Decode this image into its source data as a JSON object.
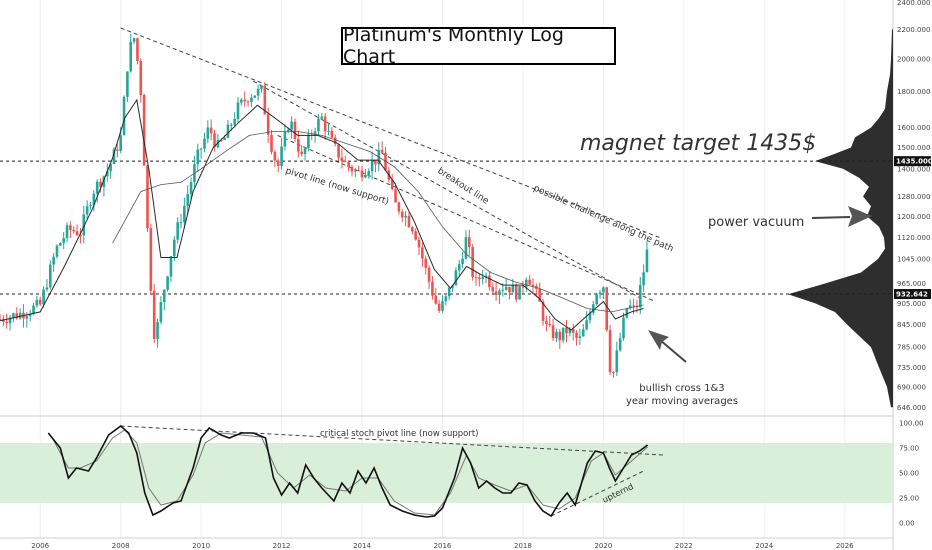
{
  "chart_data": [
    {
      "type": "candlestick",
      "title": "Platinum's Monthly Log Chart",
      "scale": "log",
      "ylim": [
        630,
        2420
      ],
      "xlim": [
        2005.0,
        2027.2
      ],
      "x_ticks": [
        "2006",
        "2008",
        "2010",
        "2012",
        "2014",
        "2016",
        "2018",
        "2020",
        "2022",
        "2024",
        "2026"
      ],
      "y_ticks": [
        "2400.000",
        "2200.000",
        "2000.000",
        "1800.000",
        "1600.000",
        "1500.000",
        "1435.000",
        "1400.000",
        "1280.000",
        "1200.000",
        "1120.000",
        "1045.000",
        "965.000",
        "932.642",
        "905.000",
        "845.000",
        "785.000",
        "735.000",
        "690.000",
        "646.000"
      ],
      "price_labels": [
        {
          "value": 1435,
          "text": "1435.000"
        },
        {
          "value": 932.642,
          "text": "932.642"
        }
      ],
      "close_path": [
        [
          2005.0,
          860
        ],
        [
          2005.5,
          875
        ],
        [
          2006.0,
          900
        ],
        [
          2006.4,
          1080
        ],
        [
          2006.7,
          1150
        ],
        [
          2007.0,
          1140
        ],
        [
          2007.3,
          1300
        ],
        [
          2007.7,
          1400
        ],
        [
          2008.0,
          1550
        ],
        [
          2008.2,
          2050
        ],
        [
          2008.35,
          2150
        ],
        [
          2008.5,
          1800
        ],
        [
          2008.7,
          1050
        ],
        [
          2008.85,
          800
        ],
        [
          2009.0,
          900
        ],
        [
          2009.3,
          1100
        ],
        [
          2009.6,
          1250
        ],
        [
          2009.9,
          1450
        ],
        [
          2010.2,
          1600
        ],
        [
          2010.4,
          1500
        ],
        [
          2010.6,
          1550
        ],
        [
          2010.9,
          1700
        ],
        [
          2011.2,
          1780
        ],
        [
          2011.5,
          1800
        ],
        [
          2011.7,
          1550
        ],
        [
          2011.9,
          1400
        ],
        [
          2012.2,
          1650
        ],
        [
          2012.5,
          1450
        ],
        [
          2012.8,
          1600
        ],
        [
          2013.0,
          1650
        ],
        [
          2013.3,
          1500
        ],
        [
          2013.6,
          1420
        ],
        [
          2013.9,
          1380
        ],
        [
          2014.2,
          1420
        ],
        [
          2014.5,
          1470
        ],
        [
          2014.8,
          1250
        ],
        [
          2015.0,
          1220
        ],
        [
          2015.3,
          1150
        ],
        [
          2015.6,
          1000
        ],
        [
          2015.9,
          880
        ],
        [
          2016.1,
          920
        ],
        [
          2016.4,
          1020
        ],
        [
          2016.6,
          1120
        ],
        [
          2016.8,
          960
        ],
        [
          2017.0,
          1000
        ],
        [
          2017.3,
          950
        ],
        [
          2017.6,
          960
        ],
        [
          2017.9,
          930
        ],
        [
          2018.1,
          1000
        ],
        [
          2018.4,
          910
        ],
        [
          2018.6,
          830
        ],
        [
          2018.9,
          810
        ],
        [
          2019.1,
          830
        ],
        [
          2019.4,
          800
        ],
        [
          2019.6,
          850
        ],
        [
          2019.8,
          940
        ],
        [
          2020.0,
          960
        ],
        [
          2020.2,
          700
        ],
        [
          2020.4,
          800
        ],
        [
          2020.6,
          900
        ],
        [
          2020.8,
          880
        ],
        [
          2020.95,
          970
        ],
        [
          2021.1,
          1080
        ]
      ],
      "ma_fast": [
        [
          2005.0,
          855
        ],
        [
          2006.0,
          880
        ],
        [
          2006.6,
          1020
        ],
        [
          2007.3,
          1230
        ],
        [
          2007.8,
          1450
        ],
        [
          2008.1,
          1650
        ],
        [
          2008.4,
          1750
        ],
        [
          2008.7,
          1400
        ],
        [
          2009.0,
          1050
        ],
        [
          2009.4,
          1050
        ],
        [
          2009.8,
          1300
        ],
        [
          2010.3,
          1500
        ],
        [
          2010.9,
          1620
        ],
        [
          2011.4,
          1720
        ],
        [
          2011.9,
          1640
        ],
        [
          2012.4,
          1560
        ],
        [
          2012.9,
          1560
        ],
        [
          2013.4,
          1520
        ],
        [
          2013.9,
          1440
        ],
        [
          2014.4,
          1440
        ],
        [
          2014.8,
          1340
        ],
        [
          2015.3,
          1180
        ],
        [
          2015.8,
          1010
        ],
        [
          2016.2,
          950
        ],
        [
          2016.6,
          1020
        ],
        [
          2017.0,
          990
        ],
        [
          2017.5,
          960
        ],
        [
          2018.0,
          960
        ],
        [
          2018.4,
          920
        ],
        [
          2018.8,
          860
        ],
        [
          2019.2,
          830
        ],
        [
          2019.6,
          870
        ],
        [
          2020.0,
          910
        ],
        [
          2020.3,
          860
        ],
        [
          2020.7,
          880
        ],
        [
          2021.0,
          890
        ]
      ],
      "ma_slow": [
        [
          2007.8,
          1100
        ],
        [
          2008.5,
          1300
        ],
        [
          2009.0,
          1330
        ],
        [
          2009.5,
          1340
        ],
        [
          2010.0,
          1400
        ],
        [
          2010.6,
          1480
        ],
        [
          2011.2,
          1560
        ],
        [
          2011.8,
          1580
        ],
        [
          2012.4,
          1580
        ],
        [
          2013.0,
          1560
        ],
        [
          2013.6,
          1520
        ],
        [
          2014.2,
          1480
        ],
        [
          2014.8,
          1410
        ],
        [
          2015.4,
          1300
        ],
        [
          2016.0,
          1160
        ],
        [
          2016.6,
          1060
        ],
        [
          2017.2,
          1000
        ],
        [
          2017.8,
          970
        ],
        [
          2018.4,
          950
        ],
        [
          2019.0,
          920
        ],
        [
          2019.6,
          890
        ],
        [
          2020.2,
          880
        ],
        [
          2021.0,
          900
        ]
      ],
      "trendlines": [
        {
          "name": "possible challenge along the path",
          "from": [
            2008.0,
            2210
          ],
          "to": [
            2021.4,
            1120
          ]
        },
        {
          "name": "breakout line",
          "from": [
            2011.3,
            1860
          ],
          "to": [
            2021.0,
            915
          ]
        },
        {
          "name": "pivot line (now support)",
          "from": [
            2011.9,
            1560
          ],
          "to": [
            2021.3,
            910
          ]
        }
      ],
      "hlines": [
        1435,
        932.642
      ],
      "volume_profile": [
        [
          646,
          2
        ],
        [
          690,
          6
        ],
        [
          735,
          14
        ],
        [
          785,
          22
        ],
        [
          845,
          46
        ],
        [
          880,
          58
        ],
        [
          905,
          78
        ],
        [
          932,
          105
        ],
        [
          965,
          68
        ],
        [
          1000,
          32
        ],
        [
          1045,
          15
        ],
        [
          1080,
          8
        ],
        [
          1120,
          9
        ],
        [
          1160,
          14
        ],
        [
          1200,
          26
        ],
        [
          1240,
          22
        ],
        [
          1280,
          30
        ],
        [
          1320,
          24
        ],
        [
          1360,
          34
        ],
        [
          1400,
          50
        ],
        [
          1435,
          78
        ],
        [
          1470,
          58
        ],
        [
          1500,
          42
        ],
        [
          1550,
          38
        ],
        [
          1600,
          22
        ],
        [
          1650,
          14
        ],
        [
          1700,
          8
        ],
        [
          1800,
          6
        ],
        [
          1900,
          3
        ],
        [
          2000,
          2
        ],
        [
          2200,
          1
        ]
      ]
    },
    {
      "type": "line",
      "title": "",
      "ylim": [
        -15,
        105
      ],
      "y_ticks": [
        "100.00",
        "75.00",
        "50.00",
        "25.00",
        "0.00"
      ],
      "band": [
        20,
        80
      ],
      "k_line": [
        [
          2006.2,
          90
        ],
        [
          2006.5,
          75
        ],
        [
          2006.7,
          45
        ],
        [
          2006.9,
          55
        ],
        [
          2007.2,
          52
        ],
        [
          2007.4,
          65
        ],
        [
          2007.7,
          88
        ],
        [
          2008.0,
          97
        ],
        [
          2008.2,
          90
        ],
        [
          2008.4,
          70
        ],
        [
          2008.6,
          30
        ],
        [
          2008.8,
          8
        ],
        [
          2009.0,
          12
        ],
        [
          2009.3,
          20
        ],
        [
          2009.5,
          22
        ],
        [
          2009.8,
          55
        ],
        [
          2010.0,
          85
        ],
        [
          2010.2,
          95
        ],
        [
          2010.5,
          88
        ],
        [
          2010.7,
          85
        ],
        [
          2011.0,
          90
        ],
        [
          2011.3,
          90
        ],
        [
          2011.6,
          85
        ],
        [
          2011.8,
          45
        ],
        [
          2012.0,
          28
        ],
        [
          2012.2,
          40
        ],
        [
          2012.4,
          30
        ],
        [
          2012.6,
          58
        ],
        [
          2012.8,
          45
        ],
        [
          2013.0,
          35
        ],
        [
          2013.3,
          22
        ],
        [
          2013.5,
          40
        ],
        [
          2013.7,
          30
        ],
        [
          2013.9,
          52
        ],
        [
          2014.1,
          40
        ],
        [
          2014.3,
          55
        ],
        [
          2014.5,
          35
        ],
        [
          2014.7,
          18
        ],
        [
          2015.0,
          12
        ],
        [
          2015.3,
          8
        ],
        [
          2015.6,
          6
        ],
        [
          2015.8,
          7
        ],
        [
          2016.0,
          15
        ],
        [
          2016.3,
          45
        ],
        [
          2016.5,
          75
        ],
        [
          2016.7,
          60
        ],
        [
          2016.9,
          35
        ],
        [
          2017.1,
          42
        ],
        [
          2017.3,
          35
        ],
        [
          2017.5,
          30
        ],
        [
          2017.7,
          30
        ],
        [
          2017.9,
          40
        ],
        [
          2018.1,
          38
        ],
        [
          2018.3,
          22
        ],
        [
          2018.5,
          12
        ],
        [
          2018.7,
          7
        ],
        [
          2018.9,
          20
        ],
        [
          2019.1,
          30
        ],
        [
          2019.3,
          18
        ],
        [
          2019.6,
          60
        ],
        [
          2019.8,
          72
        ],
        [
          2020.0,
          70
        ],
        [
          2020.15,
          55
        ],
        [
          2020.3,
          42
        ],
        [
          2020.5,
          55
        ],
        [
          2020.7,
          68
        ],
        [
          2020.9,
          72
        ],
        [
          2021.1,
          78
        ]
      ],
      "d_line": [
        [
          2006.3,
          85
        ],
        [
          2006.7,
          55
        ],
        [
          2007.0,
          55
        ],
        [
          2007.4,
          62
        ],
        [
          2007.8,
          85
        ],
        [
          2008.1,
          93
        ],
        [
          2008.4,
          80
        ],
        [
          2008.7,
          35
        ],
        [
          2009.0,
          18
        ],
        [
          2009.4,
          22
        ],
        [
          2009.8,
          48
        ],
        [
          2010.1,
          80
        ],
        [
          2010.5,
          90
        ],
        [
          2011.0,
          88
        ],
        [
          2011.5,
          86
        ],
        [
          2011.9,
          50
        ],
        [
          2012.3,
          35
        ],
        [
          2012.7,
          48
        ],
        [
          2013.1,
          35
        ],
        [
          2013.6,
          32
        ],
        [
          2014.0,
          45
        ],
        [
          2014.4,
          45
        ],
        [
          2014.8,
          22
        ],
        [
          2015.3,
          10
        ],
        [
          2015.8,
          8
        ],
        [
          2016.2,
          30
        ],
        [
          2016.6,
          68
        ],
        [
          2016.9,
          45
        ],
        [
          2017.3,
          38
        ],
        [
          2017.7,
          32
        ],
        [
          2018.1,
          38
        ],
        [
          2018.5,
          18
        ],
        [
          2018.9,
          14
        ],
        [
          2019.3,
          25
        ],
        [
          2019.7,
          62
        ],
        [
          2020.0,
          70
        ],
        [
          2020.3,
          48
        ],
        [
          2020.7,
          62
        ],
        [
          2021.1,
          76
        ]
      ],
      "trendlines": [
        {
          "name": "critical stoch pivot line (now support)",
          "from": [
            2008.0,
            97
          ],
          "to": [
            2021.5,
            68
          ]
        },
        {
          "name": "upternd",
          "from": [
            2018.7,
            7
          ],
          "to": [
            2021.0,
            52
          ]
        }
      ]
    }
  ],
  "annotations": {
    "magnet": "magnet target 1435$",
    "vacuum": "power vacuum",
    "breakout": "breakout line",
    "challenge": "possible challenge along the path",
    "pivot": "pivot line (now support)",
    "bullish_line1": "bullish cross 1&3",
    "bullish_line2": "year moving averages",
    "stoch_pivot": "critical stoch pivot line (now support)",
    "uptrend": "upternd"
  },
  "colors": {
    "up": "#26a69a",
    "down": "#ef5350",
    "band": "#d9efd9",
    "grid": "#eeeeee"
  }
}
